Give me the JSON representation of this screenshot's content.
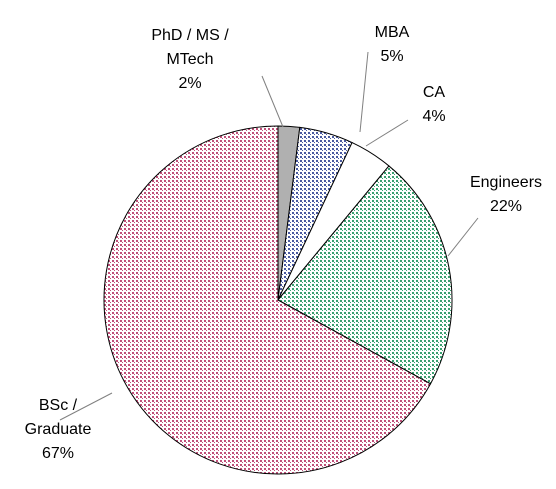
{
  "chart_data": {
    "type": "pie",
    "categories": [
      "PhD / MS / MTech",
      "MBA",
      "CA",
      "Engineers",
      "BSc / Graduate"
    ],
    "values": [
      2,
      5,
      4,
      22,
      67
    ],
    "value_labels": [
      "2%",
      "5%",
      "4%",
      "22%",
      "67%"
    ],
    "colors": [
      "#b0b0b0",
      "#4a5aa0",
      "#ffffff",
      "#3aa070",
      "#c0507a"
    ]
  }
}
